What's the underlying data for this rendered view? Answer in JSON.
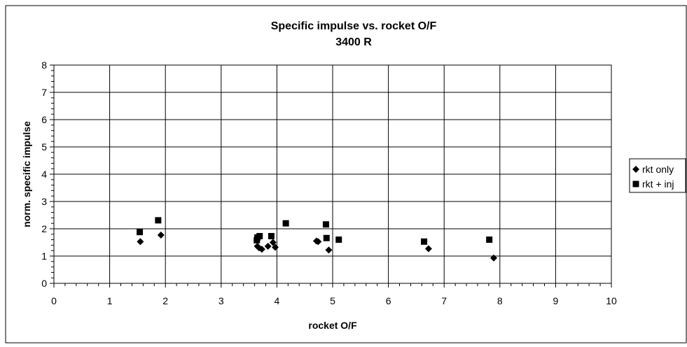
{
  "chart_data": {
    "type": "scatter",
    "title": "Specific impulse vs. rocket O/F",
    "subtitle": "3400 R",
    "xlabel": "rocket O/F",
    "ylabel": "norm. specific impulse",
    "xlim": [
      0,
      10
    ],
    "ylim": [
      0,
      8
    ],
    "x_ticks": [
      "0",
      "1",
      "2",
      "3",
      "4",
      "5",
      "6",
      "7",
      "8",
      "9",
      "10"
    ],
    "y_ticks": [
      "0",
      "1",
      "2",
      "3",
      "4",
      "5",
      "6",
      "7",
      "8"
    ],
    "grid": true,
    "legend_position": "right",
    "series": [
      {
        "name": "rkt only",
        "marker": "diamond",
        "color": "#000000",
        "points": [
          {
            "x": 1.55,
            "y": 1.53
          },
          {
            "x": 1.92,
            "y": 1.77
          },
          {
            "x": 3.65,
            "y": 1.36
          },
          {
            "x": 3.68,
            "y": 1.3
          },
          {
            "x": 3.73,
            "y": 1.25
          },
          {
            "x": 3.84,
            "y": 1.36
          },
          {
            "x": 3.93,
            "y": 1.5
          },
          {
            "x": 3.97,
            "y": 1.32
          },
          {
            "x": 4.71,
            "y": 1.55
          },
          {
            "x": 4.74,
            "y": 1.53
          },
          {
            "x": 4.93,
            "y": 1.22
          },
          {
            "x": 6.72,
            "y": 1.27
          },
          {
            "x": 7.89,
            "y": 0.93
          }
        ]
      },
      {
        "name": "rkt + inj",
        "marker": "square",
        "color": "#000000",
        "points": [
          {
            "x": 1.54,
            "y": 1.88
          },
          {
            "x": 1.87,
            "y": 2.31
          },
          {
            "x": 3.64,
            "y": 1.58
          },
          {
            "x": 3.65,
            "y": 1.68
          },
          {
            "x": 3.69,
            "y": 1.73
          },
          {
            "x": 3.9,
            "y": 1.73
          },
          {
            "x": 4.16,
            "y": 2.2
          },
          {
            "x": 4.88,
            "y": 2.16
          },
          {
            "x": 4.89,
            "y": 1.66
          },
          {
            "x": 5.11,
            "y": 1.6
          },
          {
            "x": 6.64,
            "y": 1.53
          },
          {
            "x": 7.81,
            "y": 1.6
          }
        ]
      }
    ]
  }
}
